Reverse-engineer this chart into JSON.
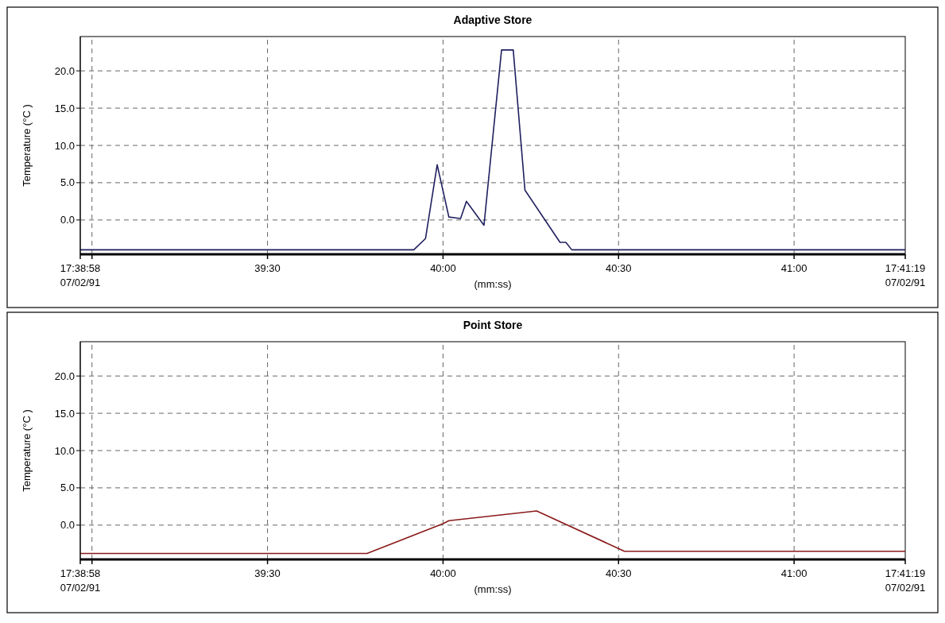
{
  "chart_data": [
    {
      "type": "line",
      "title": "Adaptive Store",
      "xlabel": "(mm:ss)",
      "ylabel": "Temperature (°C )",
      "grid": true,
      "x": [
        "1991-07-02T17:38:58",
        "1991-07-02T17:39:55",
        "1991-07-02T17:39:57",
        "1991-07-02T17:39:59",
        "1991-07-02T17:40:01",
        "1991-07-02T17:40:02",
        "1991-07-02T17:40:03",
        "1991-07-02T17:40:04",
        "1991-07-02T17:40:07",
        "1991-07-02T17:40:10",
        "1991-07-02T17:40:12",
        "1991-07-02T17:40:14",
        "1991-07-02T17:40:20",
        "1991-07-02T17:40:21",
        "1991-07-02T17:40:22",
        "1991-07-02T17:41:19"
      ],
      "series": [
        {
          "color": "#1f1f5f",
          "values": [
            -4.0,
            -4.0,
            -2.5,
            7.4,
            0.4,
            0.3,
            0.2,
            2.5,
            -0.7,
            22.8,
            22.8,
            4.0,
            -3.0,
            -3.0,
            -4.0,
            -4.0
          ]
        }
      ],
      "xlim": [
        "1991-07-02T17:38:58",
        "1991-07-02T17:41:19"
      ],
      "ylim": [
        -4.6,
        24.6
      ],
      "xticks": [
        {
          "value": "1991-07-02T17:38:58",
          "label": "17:38:58\n07/02/91"
        },
        {
          "value": "1991-07-02T17:39:00",
          "label": null
        },
        {
          "value": "1991-07-02T17:39:30",
          "label": "39:30"
        },
        {
          "value": "1991-07-02T17:40:00",
          "label": "40:00"
        },
        {
          "value": "1991-07-02T17:40:30",
          "label": "40:30"
        },
        {
          "value": "1991-07-02T17:41:00",
          "label": "41:00"
        },
        {
          "value": "1991-07-02T17:41:19",
          "label": "17:41:19\n07/02/91"
        }
      ],
      "yticks": [
        {
          "value": 0,
          "label": "0.0"
        },
        {
          "value": 5,
          "label": "5.0"
        },
        {
          "value": 10,
          "label": "10.0"
        },
        {
          "value": 15,
          "label": "15.0"
        },
        {
          "value": 20,
          "label": "20.0"
        }
      ]
    },
    {
      "type": "line",
      "title": "Point Store",
      "xlabel": "(mm:ss)",
      "ylabel": "Temperature (°C )",
      "grid": true,
      "x": [
        "1991-07-02T17:38:58",
        "1991-07-02T17:39:47",
        "1991-07-02T17:40:00",
        "1991-07-02T17:40:01",
        "1991-07-02T17:40:16",
        "1991-07-02T17:40:31",
        "1991-07-02T17:41:19"
      ],
      "series": [
        {
          "color": "#8b1a1a",
          "values": [
            -3.8,
            -3.8,
            0.2,
            0.6,
            1.9,
            -3.5,
            -3.5
          ]
        }
      ],
      "xlim": [
        "1991-07-02T17:38:58",
        "1991-07-02T17:41:19"
      ],
      "ylim": [
        -4.6,
        24.6
      ],
      "xticks": [
        {
          "value": "1991-07-02T17:38:58",
          "label": "17:38:58\n07/02/91"
        },
        {
          "value": "1991-07-02T17:39:00",
          "label": null
        },
        {
          "value": "1991-07-02T17:39:30",
          "label": "39:30"
        },
        {
          "value": "1991-07-02T17:40:00",
          "label": "40:00"
        },
        {
          "value": "1991-07-02T17:40:30",
          "label": "40:30"
        },
        {
          "value": "1991-07-02T17:41:00",
          "label": "41:00"
        },
        {
          "value": "1991-07-02T17:41:19",
          "label": "17:41:19\n07/02/91"
        }
      ],
      "yticks": [
        {
          "value": 0,
          "label": "0.0"
        },
        {
          "value": 5,
          "label": "5.0"
        },
        {
          "value": 10,
          "label": "10.0"
        },
        {
          "value": 15,
          "label": "15.0"
        },
        {
          "value": 20,
          "label": "20.0"
        }
      ]
    }
  ]
}
